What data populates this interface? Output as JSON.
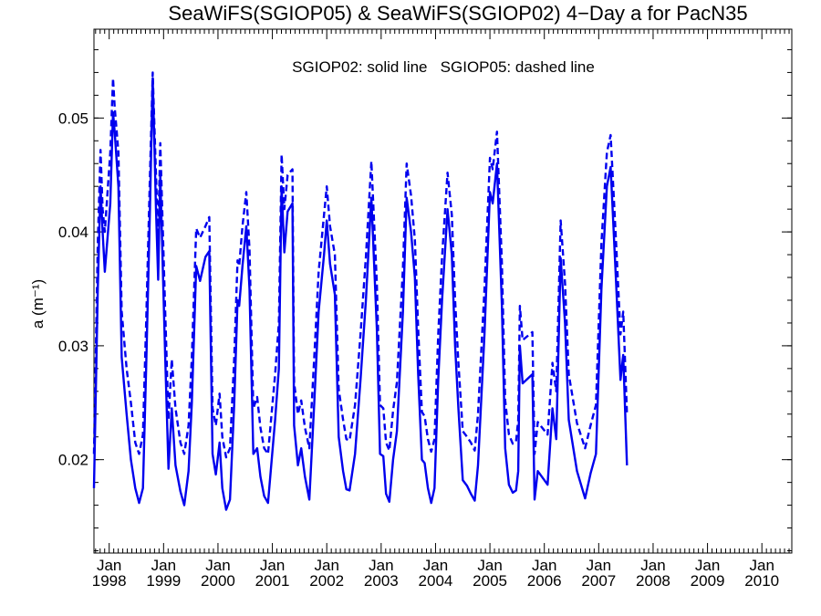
{
  "chart_data": {
    "type": "line",
    "title": "SeaWiFS(SGIOP05) & SeaWiFS(SGIOP02) 4−Day a for PacN35",
    "annotation": "SGIOP02: solid line   SGIOP05: dashed line",
    "ylabel": "a (m⁻¹)",
    "xlabel": "",
    "xlim": [
      1997.72,
      2010.55
    ],
    "ylim": [
      0.0118,
      0.0578
    ],
    "x_ticks": [
      {
        "x": 1998.0,
        "month": "Jan",
        "year": "1998"
      },
      {
        "x": 1999.0,
        "month": "Jan",
        "year": "1999"
      },
      {
        "x": 2000.0,
        "month": "Jan",
        "year": "2000"
      },
      {
        "x": 2001.0,
        "month": "Jan",
        "year": "2001"
      },
      {
        "x": 2002.0,
        "month": "Jan",
        "year": "2002"
      },
      {
        "x": 2003.0,
        "month": "Jan",
        "year": "2003"
      },
      {
        "x": 2004.0,
        "month": "Jan",
        "year": "2004"
      },
      {
        "x": 2005.0,
        "month": "Jan",
        "year": "2005"
      },
      {
        "x": 2006.0,
        "month": "Jan",
        "year": "2006"
      },
      {
        "x": 2007.0,
        "month": "Jan",
        "year": "2007"
      },
      {
        "x": 2008.0,
        "month": "Jan",
        "year": "2008"
      },
      {
        "x": 2009.0,
        "month": "Jan",
        "year": "2009"
      },
      {
        "x": 2010.0,
        "month": "Jan",
        "year": "2010"
      }
    ],
    "y_ticks": [
      {
        "value": 0.02,
        "label": "0.02"
      },
      {
        "value": 0.03,
        "label": "0.03"
      },
      {
        "value": 0.04,
        "label": "0.04"
      },
      {
        "value": 0.05,
        "label": "0.05"
      }
    ],
    "grid": false,
    "line_color": "#0000ee",
    "series": [
      {
        "style": "solid",
        "points": [
          [
            1997.72,
            0.0175
          ],
          [
            1997.79,
            0.035
          ],
          [
            1997.84,
            0.044
          ],
          [
            1997.88,
            0.04
          ],
          [
            1997.92,
            0.0365
          ],
          [
            1998.02,
            0.0425
          ],
          [
            1998.07,
            0.0505
          ],
          [
            1998.1,
            0.0488
          ],
          [
            1998.17,
            0.044
          ],
          [
            1998.23,
            0.029
          ],
          [
            1998.32,
            0.024
          ],
          [
            1998.4,
            0.02
          ],
          [
            1998.48,
            0.0175
          ],
          [
            1998.55,
            0.0162
          ],
          [
            1998.62,
            0.0175
          ],
          [
            1998.68,
            0.028
          ],
          [
            1998.75,
            0.042
          ],
          [
            1998.8,
            0.0535
          ],
          [
            1998.86,
            0.042
          ],
          [
            1998.9,
            0.0358
          ],
          [
            1998.94,
            0.045
          ],
          [
            1999.03,
            0.029
          ],
          [
            1999.09,
            0.0192
          ],
          [
            1999.15,
            0.0245
          ],
          [
            1999.22,
            0.0195
          ],
          [
            1999.31,
            0.0172
          ],
          [
            1999.38,
            0.016
          ],
          [
            1999.46,
            0.019
          ],
          [
            1999.52,
            0.025
          ],
          [
            1999.6,
            0.037
          ],
          [
            1999.67,
            0.0357
          ],
          [
            1999.77,
            0.0378
          ],
          [
            1999.84,
            0.0383
          ],
          [
            1999.9,
            0.0205
          ],
          [
            1999.96,
            0.0187
          ],
          [
            2000.03,
            0.0215
          ],
          [
            2000.08,
            0.0175
          ],
          [
            2000.15,
            0.0156
          ],
          [
            2000.22,
            0.0165
          ],
          [
            2000.3,
            0.025
          ],
          [
            2000.36,
            0.034
          ],
          [
            2000.39,
            0.0335
          ],
          [
            2000.45,
            0.037
          ],
          [
            2000.52,
            0.0405
          ],
          [
            2000.58,
            0.035
          ],
          [
            2000.65,
            0.0205
          ],
          [
            2000.72,
            0.021
          ],
          [
            2000.78,
            0.0185
          ],
          [
            2000.85,
            0.0168
          ],
          [
            2000.92,
            0.0162
          ],
          [
            2001.05,
            0.0235
          ],
          [
            2001.12,
            0.028
          ],
          [
            2001.17,
            0.044
          ],
          [
            2001.22,
            0.0382
          ],
          [
            2001.28,
            0.0418
          ],
          [
            2001.37,
            0.0425
          ],
          [
            2001.4,
            0.023
          ],
          [
            2001.47,
            0.0195
          ],
          [
            2001.53,
            0.021
          ],
          [
            2001.6,
            0.0185
          ],
          [
            2001.68,
            0.0165
          ],
          [
            2001.77,
            0.025
          ],
          [
            2001.85,
            0.033
          ],
          [
            2001.95,
            0.038
          ],
          [
            2002.0,
            0.041
          ],
          [
            2002.06,
            0.0372
          ],
          [
            2002.15,
            0.0345
          ],
          [
            2002.22,
            0.022
          ],
          [
            2002.3,
            0.019
          ],
          [
            2002.36,
            0.0174
          ],
          [
            2002.42,
            0.0173
          ],
          [
            2002.52,
            0.0205
          ],
          [
            2002.62,
            0.027
          ],
          [
            2002.72,
            0.034
          ],
          [
            2002.82,
            0.043
          ],
          [
            2002.92,
            0.0315
          ],
          [
            2002.98,
            0.0205
          ],
          [
            2003.04,
            0.0203
          ],
          [
            2003.09,
            0.017
          ],
          [
            2003.15,
            0.0163
          ],
          [
            2003.22,
            0.02
          ],
          [
            2003.29,
            0.0225
          ],
          [
            2003.4,
            0.033
          ],
          [
            2003.47,
            0.043
          ],
          [
            2003.55,
            0.04
          ],
          [
            2003.62,
            0.036
          ],
          [
            2003.68,
            0.0275
          ],
          [
            2003.75,
            0.02
          ],
          [
            2003.8,
            0.0197
          ],
          [
            2003.86,
            0.0175
          ],
          [
            2003.92,
            0.0162
          ],
          [
            2003.98,
            0.0175
          ],
          [
            2004.05,
            0.027
          ],
          [
            2004.12,
            0.034
          ],
          [
            2004.22,
            0.042
          ],
          [
            2004.3,
            0.038
          ],
          [
            2004.36,
            0.03
          ],
          [
            2004.42,
            0.0245
          ],
          [
            2004.5,
            0.0182
          ],
          [
            2004.58,
            0.0177
          ],
          [
            2004.65,
            0.017
          ],
          [
            2004.72,
            0.0164
          ],
          [
            2004.78,
            0.0195
          ],
          [
            2004.9,
            0.031
          ],
          [
            2005.0,
            0.0435
          ],
          [
            2005.05,
            0.0425
          ],
          [
            2005.13,
            0.046
          ],
          [
            2005.22,
            0.0335
          ],
          [
            2005.28,
            0.021
          ],
          [
            2005.35,
            0.0178
          ],
          [
            2005.42,
            0.0171
          ],
          [
            2005.48,
            0.0173
          ],
          [
            2005.52,
            0.019
          ],
          [
            2005.55,
            0.03
          ],
          [
            2005.6,
            0.0267
          ],
          [
            2005.78,
            0.0275
          ],
          [
            2005.82,
            0.0165
          ],
          [
            2005.88,
            0.019
          ],
          [
            2006.06,
            0.0178
          ],
          [
            2006.15,
            0.0245
          ],
          [
            2006.22,
            0.0218
          ],
          [
            2006.3,
            0.0377
          ],
          [
            2006.38,
            0.032
          ],
          [
            2006.45,
            0.0235
          ],
          [
            2006.6,
            0.019
          ],
          [
            2006.75,
            0.0166
          ],
          [
            2006.85,
            0.0188
          ],
          [
            2006.95,
            0.0205
          ],
          [
            2007.05,
            0.035
          ],
          [
            2007.15,
            0.044
          ],
          [
            2007.22,
            0.0457
          ],
          [
            2007.32,
            0.0355
          ],
          [
            2007.4,
            0.027
          ],
          [
            2007.45,
            0.0292
          ],
          [
            2007.52,
            0.0195
          ]
        ]
      },
      {
        "style": "dashed",
        "points": [
          [
            1997.72,
            0.0205
          ],
          [
            1997.79,
            0.039
          ],
          [
            1997.84,
            0.0472
          ],
          [
            1997.88,
            0.042
          ],
          [
            1997.92,
            0.04
          ],
          [
            1998.02,
            0.047
          ],
          [
            1998.07,
            0.0535
          ],
          [
            1998.1,
            0.051
          ],
          [
            1998.17,
            0.047
          ],
          [
            1998.23,
            0.033
          ],
          [
            1998.32,
            0.028
          ],
          [
            1998.4,
            0.025
          ],
          [
            1998.48,
            0.0215
          ],
          [
            1998.55,
            0.0205
          ],
          [
            1998.62,
            0.0222
          ],
          [
            1998.68,
            0.032
          ],
          [
            1998.75,
            0.045
          ],
          [
            1998.8,
            0.054
          ],
          [
            1998.86,
            0.045
          ],
          [
            1998.9,
            0.0395
          ],
          [
            1998.94,
            0.0478
          ],
          [
            1999.03,
            0.033
          ],
          [
            1999.09,
            0.0235
          ],
          [
            1999.15,
            0.0288
          ],
          [
            1999.22,
            0.0245
          ],
          [
            1999.31,
            0.0215
          ],
          [
            1999.38,
            0.0205
          ],
          [
            1999.46,
            0.023
          ],
          [
            1999.52,
            0.029
          ],
          [
            1999.6,
            0.0403
          ],
          [
            1999.67,
            0.0395
          ],
          [
            1999.77,
            0.0405
          ],
          [
            1999.84,
            0.0413
          ],
          [
            1999.9,
            0.0245
          ],
          [
            1999.96,
            0.023
          ],
          [
            2000.03,
            0.0258
          ],
          [
            2000.08,
            0.022
          ],
          [
            2000.15,
            0.0202
          ],
          [
            2000.22,
            0.021
          ],
          [
            2000.3,
            0.029
          ],
          [
            2000.36,
            0.0375
          ],
          [
            2000.39,
            0.037
          ],
          [
            2000.45,
            0.0405
          ],
          [
            2000.52,
            0.0435
          ],
          [
            2000.58,
            0.0385
          ],
          [
            2000.65,
            0.0245
          ],
          [
            2000.72,
            0.0255
          ],
          [
            2000.78,
            0.0228
          ],
          [
            2000.85,
            0.021
          ],
          [
            2000.92,
            0.0205
          ],
          [
            2001.05,
            0.0275
          ],
          [
            2001.12,
            0.032
          ],
          [
            2001.17,
            0.0468
          ],
          [
            2001.22,
            0.042
          ],
          [
            2001.28,
            0.045
          ],
          [
            2001.37,
            0.0455
          ],
          [
            2001.4,
            0.0268
          ],
          [
            2001.47,
            0.024
          ],
          [
            2001.53,
            0.0252
          ],
          [
            2001.6,
            0.0228
          ],
          [
            2001.68,
            0.021
          ],
          [
            2001.77,
            0.029
          ],
          [
            2001.85,
            0.0365
          ],
          [
            2001.95,
            0.0415
          ],
          [
            2002.0,
            0.044
          ],
          [
            2002.06,
            0.0405
          ],
          [
            2002.15,
            0.038
          ],
          [
            2002.22,
            0.0262
          ],
          [
            2002.3,
            0.0235
          ],
          [
            2002.36,
            0.0218
          ],
          [
            2002.42,
            0.0217
          ],
          [
            2002.52,
            0.0248
          ],
          [
            2002.62,
            0.031
          ],
          [
            2002.72,
            0.0378
          ],
          [
            2002.82,
            0.0462
          ],
          [
            2002.92,
            0.0355
          ],
          [
            2002.98,
            0.0248
          ],
          [
            2003.04,
            0.0245
          ],
          [
            2003.09,
            0.0215
          ],
          [
            2003.15,
            0.0208
          ],
          [
            2003.22,
            0.0243
          ],
          [
            2003.29,
            0.0268
          ],
          [
            2003.4,
            0.0368
          ],
          [
            2003.47,
            0.046
          ],
          [
            2003.55,
            0.0432
          ],
          [
            2003.62,
            0.0393
          ],
          [
            2003.68,
            0.0315
          ],
          [
            2003.75,
            0.0242
          ],
          [
            2003.8,
            0.0238
          ],
          [
            2003.86,
            0.0218
          ],
          [
            2003.92,
            0.0207
          ],
          [
            2003.98,
            0.0218
          ],
          [
            2004.05,
            0.031
          ],
          [
            2004.12,
            0.0378
          ],
          [
            2004.22,
            0.0452
          ],
          [
            2004.3,
            0.0415
          ],
          [
            2004.36,
            0.034
          ],
          [
            2004.42,
            0.0285
          ],
          [
            2004.5,
            0.0225
          ],
          [
            2004.58,
            0.022
          ],
          [
            2004.65,
            0.0215
          ],
          [
            2004.72,
            0.0208
          ],
          [
            2004.78,
            0.024
          ],
          [
            2004.9,
            0.035
          ],
          [
            2005.0,
            0.0465
          ],
          [
            2005.05,
            0.0455
          ],
          [
            2005.13,
            0.0488
          ],
          [
            2005.22,
            0.0372
          ],
          [
            2005.28,
            0.0252
          ],
          [
            2005.35,
            0.0222
          ],
          [
            2005.42,
            0.0214
          ],
          [
            2005.48,
            0.0216
          ],
          [
            2005.52,
            0.0235
          ],
          [
            2005.55,
            0.0335
          ],
          [
            2005.6,
            0.0305
          ],
          [
            2005.78,
            0.0312
          ],
          [
            2005.82,
            0.0205
          ],
          [
            2005.88,
            0.0233
          ],
          [
            2006.06,
            0.0222
          ],
          [
            2006.15,
            0.0285
          ],
          [
            2006.22,
            0.026
          ],
          [
            2006.3,
            0.041
          ],
          [
            2006.38,
            0.0355
          ],
          [
            2006.45,
            0.0275
          ],
          [
            2006.6,
            0.0232
          ],
          [
            2006.75,
            0.021
          ],
          [
            2006.85,
            0.023
          ],
          [
            2006.95,
            0.0248
          ],
          [
            2007.05,
            0.039
          ],
          [
            2007.15,
            0.047
          ],
          [
            2007.22,
            0.0485
          ],
          [
            2007.32,
            0.039
          ],
          [
            2007.4,
            0.031
          ],
          [
            2007.45,
            0.033
          ],
          [
            2007.52,
            0.024
          ]
        ]
      }
    ]
  }
}
